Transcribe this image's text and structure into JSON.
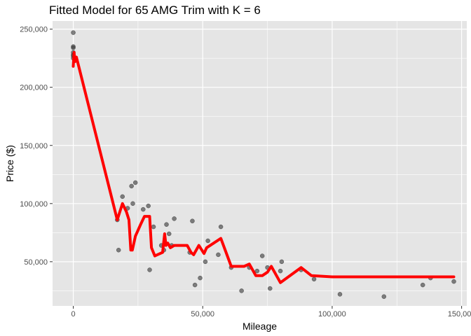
{
  "chart_data": {
    "type": "scatter",
    "title": "Fitted Model for 65 AMG Trim with K = 6",
    "xlabel": "Mileage",
    "ylabel": "Price ($)",
    "xlim": [
      -8000,
      152000
    ],
    "ylim": [
      12000,
      257000
    ],
    "x_ticks": [
      0,
      50000,
      100000,
      150000
    ],
    "x_tick_labels": [
      "0",
      "50,000",
      "100,000",
      "150,000"
    ],
    "y_ticks": [
      50000,
      100000,
      150000,
      200000,
      250000
    ],
    "y_tick_labels": [
      "50,000",
      "100,000",
      "150,000",
      "200,000",
      "250,000"
    ],
    "grid": true,
    "colors": {
      "panel": "#e5e5e5",
      "grid": "#ffffff",
      "points": "#333333",
      "fit_line": "#ff0000"
    },
    "points": [
      [
        0,
        247000
      ],
      [
        0,
        235000
      ],
      [
        0,
        234000
      ],
      [
        0,
        230000
      ],
      [
        0,
        228000
      ],
      [
        0,
        227000
      ],
      [
        0,
        225000
      ],
      [
        17000,
        86000
      ],
      [
        17500,
        60000
      ],
      [
        19000,
        106000
      ],
      [
        21000,
        96000
      ],
      [
        22500,
        115000
      ],
      [
        23000,
        100000
      ],
      [
        24000,
        118000
      ],
      [
        27000,
        95000
      ],
      [
        29000,
        98000
      ],
      [
        29500,
        43000
      ],
      [
        31000,
        80000
      ],
      [
        34000,
        64000
      ],
      [
        35000,
        60000
      ],
      [
        36000,
        82000
      ],
      [
        37000,
        74000
      ],
      [
        38000,
        64000
      ],
      [
        39000,
        87000
      ],
      [
        45000,
        58000
      ],
      [
        46000,
        85000
      ],
      [
        47000,
        30000
      ],
      [
        49000,
        36000
      ],
      [
        51000,
        50000
      ],
      [
        52000,
        68000
      ],
      [
        56000,
        56000
      ],
      [
        57000,
        80000
      ],
      [
        61000,
        45000
      ],
      [
        65000,
        25000
      ],
      [
        68000,
        45000
      ],
      [
        71000,
        42000
      ],
      [
        73000,
        55000
      ],
      [
        75000,
        45000
      ],
      [
        76000,
        27000
      ],
      [
        80000,
        42000
      ],
      [
        80500,
        50000
      ],
      [
        88000,
        43000
      ],
      [
        93000,
        35000
      ],
      [
        103000,
        22000
      ],
      [
        120000,
        20000
      ],
      [
        135000,
        30000
      ],
      [
        138000,
        36000
      ],
      [
        147000,
        33000
      ]
    ],
    "fit_line": [
      [
        0,
        218000
      ],
      [
        300,
        230000
      ],
      [
        700,
        222000
      ],
      [
        1200,
        226000
      ],
      [
        17000,
        86000
      ],
      [
        19000,
        100000
      ],
      [
        20500,
        93000
      ],
      [
        21500,
        86000
      ],
      [
        22200,
        60000
      ],
      [
        22800,
        60000
      ],
      [
        24000,
        72000
      ],
      [
        26000,
        82000
      ],
      [
        27500,
        89000
      ],
      [
        29500,
        89000
      ],
      [
        30200,
        62000
      ],
      [
        31500,
        55000
      ],
      [
        34500,
        58000
      ],
      [
        35300,
        74000
      ],
      [
        35800,
        64000
      ],
      [
        36500,
        66000
      ],
      [
        37500,
        62000
      ],
      [
        39000,
        64000
      ],
      [
        44000,
        64000
      ],
      [
        45500,
        58000
      ],
      [
        46500,
        56000
      ],
      [
        48500,
        64000
      ],
      [
        50500,
        57000
      ],
      [
        51500,
        62000
      ],
      [
        57000,
        70000
      ],
      [
        61000,
        46000
      ],
      [
        66000,
        46000
      ],
      [
        68000,
        48000
      ],
      [
        70500,
        38000
      ],
      [
        73000,
        38000
      ],
      [
        75000,
        41000
      ],
      [
        76500,
        46000
      ],
      [
        80000,
        32000
      ],
      [
        88000,
        45000
      ],
      [
        92000,
        38000
      ],
      [
        100000,
        37000
      ],
      [
        147000,
        37000
      ]
    ]
  }
}
